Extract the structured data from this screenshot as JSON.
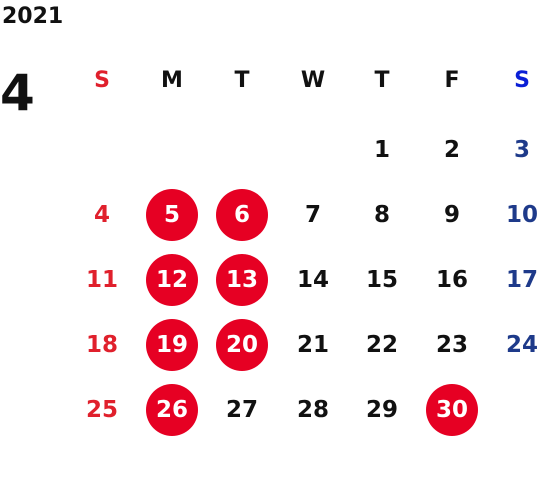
{
  "calendar": {
    "year": "2021",
    "month": "4",
    "weekdays": [
      "S",
      "M",
      "T",
      "W",
      "T",
      "F",
      "S"
    ],
    "weeks": [
      [
        null,
        null,
        null,
        null,
        1,
        2,
        3
      ],
      [
        4,
        5,
        6,
        7,
        8,
        9,
        10
      ],
      [
        11,
        12,
        13,
        14,
        15,
        16,
        17
      ],
      [
        18,
        19,
        20,
        21,
        22,
        23,
        24
      ],
      [
        25,
        26,
        27,
        28,
        29,
        30,
        null
      ]
    ],
    "highlighted_days": [
      5,
      6,
      12,
      13,
      19,
      20,
      26,
      30
    ],
    "colors": {
      "sunday": "#e0202c",
      "saturday": "#1e3a8a",
      "highlight": "#e60023"
    }
  }
}
